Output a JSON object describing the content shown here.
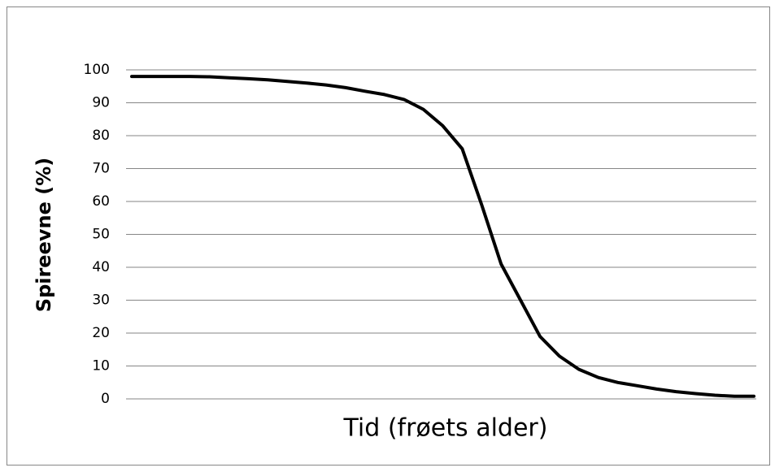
{
  "chart_data": {
    "type": "line",
    "y_label": "Spireevne (%)",
    "x_label": "Tid (frøets alder)",
    "categories": [
      null,
      null,
      null,
      null,
      null,
      null,
      null,
      null,
      null,
      null,
      null,
      null,
      null,
      null,
      null,
      null,
      null,
      null,
      null,
      null,
      null,
      null,
      null,
      null,
      null,
      null,
      null,
      null,
      null,
      null,
      null,
      null,
      null
    ],
    "series": [
      {
        "color": "#000000",
        "values": [
          98,
          98,
          98,
          98,
          97.9,
          97.6,
          97.3,
          97,
          96.5,
          96,
          95.4,
          94.6,
          93.5,
          92.5,
          91,
          88,
          83,
          76,
          59,
          41,
          30,
          19,
          13,
          9,
          6.5,
          5,
          4,
          3,
          2.2,
          1.6,
          1.1,
          0.8,
          0.8
        ]
      }
    ],
    "ylim": [
      0,
      100
    ],
    "yticks": [
      0,
      10,
      20,
      30,
      40,
      50,
      60,
      70,
      80,
      90,
      100
    ],
    "grid": true
  }
}
